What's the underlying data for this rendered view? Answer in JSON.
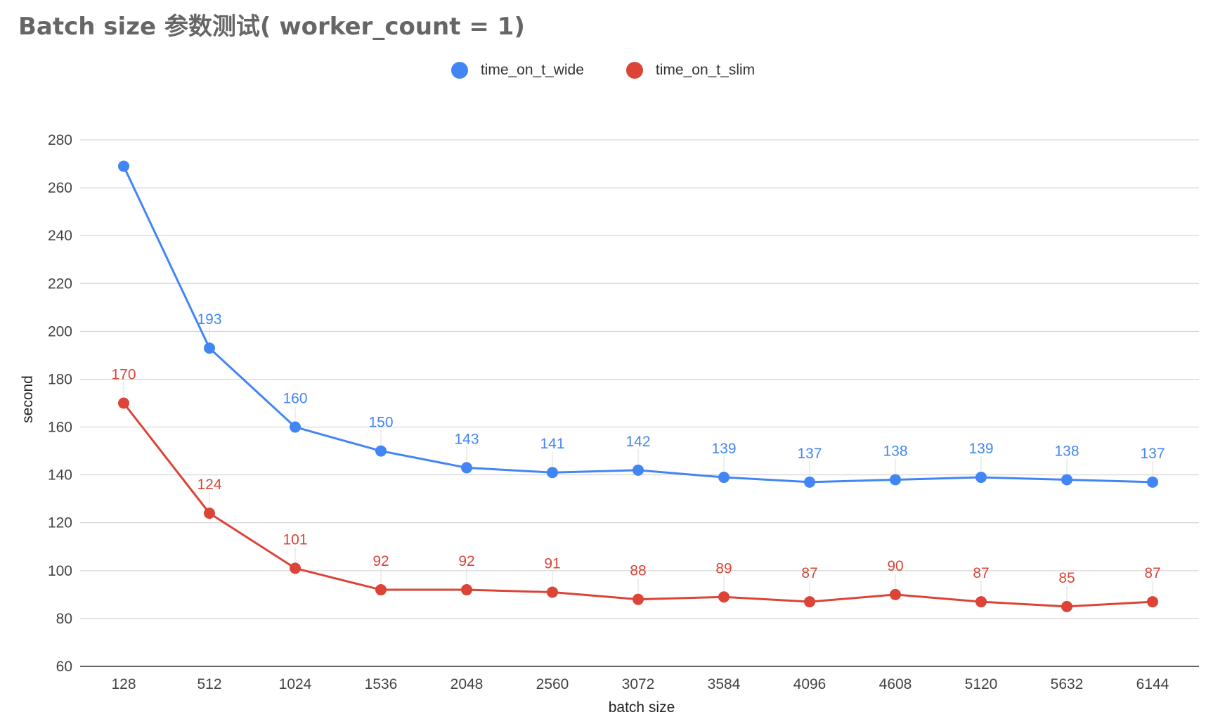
{
  "title": "Batch size 参数测试( worker_count = 1)",
  "legend": [
    {
      "label": "time_on_t_wide",
      "color": "#4285f4"
    },
    {
      "label": "time_on_t_slim",
      "color": "#db4437"
    }
  ],
  "chart_data": {
    "type": "line",
    "title": "Batch size 参数测试( worker_count = 1)",
    "xlabel": "batch size",
    "ylabel": "second",
    "categories": [
      "128",
      "512",
      "1024",
      "1536",
      "2048",
      "2560",
      "3072",
      "3584",
      "4096",
      "4608",
      "5120",
      "5632",
      "6144"
    ],
    "ylim": [
      60,
      280
    ],
    "yticks": [
      60,
      80,
      100,
      120,
      140,
      160,
      180,
      200,
      220,
      240,
      260,
      280
    ],
    "grid": true,
    "legend_position": "top-center",
    "series": [
      {
        "name": "time_on_t_wide",
        "color": "#4285f4",
        "values": [
          269,
          193,
          160,
          150,
          143,
          141,
          142,
          139,
          137,
          138,
          139,
          138,
          137
        ],
        "labels": [
          "",
          "193",
          "160",
          "150",
          "143",
          "141",
          "142",
          "139",
          "137",
          "138",
          "139",
          "138",
          "137"
        ]
      },
      {
        "name": "time_on_t_slim",
        "color": "#db4437",
        "values": [
          170,
          124,
          101,
          92,
          92,
          91,
          88,
          89,
          87,
          90,
          87,
          85,
          87
        ],
        "labels": [
          "170",
          "124",
          "101",
          "92",
          "92",
          "91",
          "88",
          "89",
          "87",
          "90",
          "87",
          "85",
          "87"
        ]
      }
    ]
  }
}
